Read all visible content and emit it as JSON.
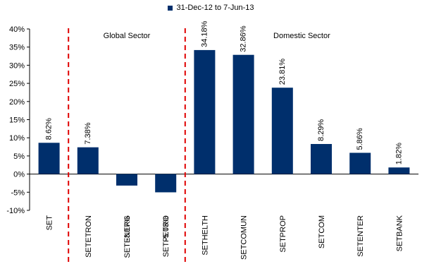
{
  "chart_data": {
    "type": "bar",
    "legend": {
      "label": "31-Dec-12 to 7-Jun-13",
      "position": "top-center"
    },
    "categories": [
      "SET",
      "SETETRON",
      "SETENERG",
      "SETPETRO",
      "SETHELTH",
      "SETCOMUN",
      "SETPROP",
      "SETCOM",
      "SETENTER",
      "SETBANK"
    ],
    "values": [
      8.62,
      7.38,
      -3.17,
      -5.03,
      34.18,
      32.86,
      23.81,
      8.29,
      5.86,
      1.82
    ],
    "data_labels": [
      "8.62%",
      "7.38%",
      "-3.17%",
      "-5.03%",
      "34.18%",
      "32.86%",
      "23.81%",
      "8.29%",
      "5.86%",
      "1.82%"
    ],
    "ylim": [
      -10,
      40
    ],
    "yticks": [
      -10,
      -5,
      0,
      5,
      10,
      15,
      20,
      25,
      30,
      35,
      40
    ],
    "ytick_labels": [
      "-10%",
      "-5%",
      "0%",
      "5%",
      "10%",
      "15%",
      "20%",
      "25%",
      "30%",
      "35%",
      "40%"
    ],
    "grid": false,
    "bar_color": "#002f6c",
    "divider_color": "#e00000",
    "sections": [
      {
        "label": "Global Sector",
        "from_index": 1,
        "to_index": 3
      },
      {
        "label": "Domestic Sector",
        "from_index": 4,
        "to_index": 9
      }
    ],
    "dividers_after_index": [
      0,
      3
    ]
  }
}
